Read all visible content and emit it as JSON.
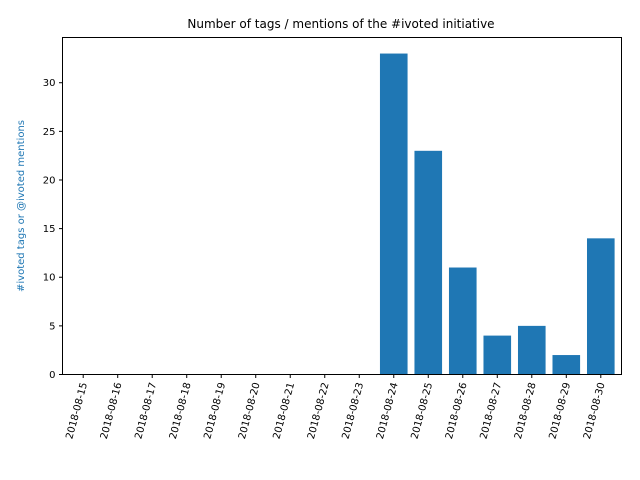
{
  "chart_data": {
    "type": "bar",
    "title": "Number of tags / mentions of the #ivoted initiative",
    "xlabel": "",
    "ylabel": "#ivoted tags or @ivoted mentions",
    "categories": [
      "2018-08-15",
      "2018-08-16",
      "2018-08-17",
      "2018-08-18",
      "2018-08-19",
      "2018-08-20",
      "2018-08-21",
      "2018-08-22",
      "2018-08-23",
      "2018-08-24",
      "2018-08-25",
      "2018-08-26",
      "2018-08-27",
      "2018-08-28",
      "2018-08-29",
      "2018-08-30"
    ],
    "values": [
      0,
      0,
      0,
      0,
      0,
      0,
      0,
      0,
      0,
      33,
      23,
      11,
      4,
      5,
      2,
      14
    ],
    "ylim": [
      0,
      34.65
    ],
    "yticks": [
      0,
      5,
      10,
      15,
      20,
      25,
      30
    ],
    "grid": false,
    "bar_color": "#1f77b4",
    "ylabel_color": "#1f77b4"
  }
}
